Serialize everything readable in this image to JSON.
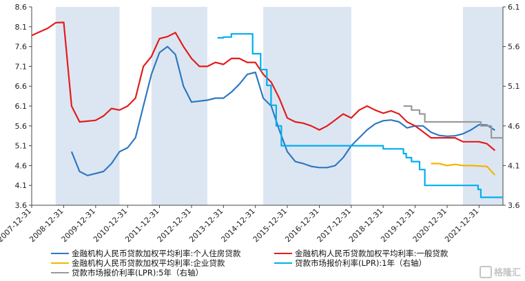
{
  "chart_data": {
    "type": "line",
    "left_axis": {
      "ylim": [
        3.6,
        8.6
      ],
      "ticks": [
        "3.6",
        "4.1",
        "4.6",
        "5.1",
        "5.6",
        "6.1",
        "6.6",
        "7.1",
        "7.6",
        "8.1",
        "8.6"
      ]
    },
    "right_axis": {
      "ylim": [
        3.6,
        6.1
      ],
      "ticks": [
        "3.6",
        "4.1",
        "4.6",
        "5.1",
        "5.6",
        "6.1"
      ]
    },
    "x_range": [
      "2007-12-31",
      "2022-09-30"
    ],
    "x_ticks": [
      "2007-12-31",
      "2008-12-31",
      "2009-12-31",
      "2010-12-31",
      "2011-12-31",
      "2012-12-31",
      "2013-12-31",
      "2014-12-31",
      "2015-12-31",
      "2016-12-31",
      "2017-12-31",
      "2018-12-31",
      "2019-12-31",
      "2020-12-31",
      "2021-12-31"
    ],
    "shaded_periods": [
      [
        "2008-09-30",
        "2010-09-30"
      ],
      [
        "2011-09-30",
        "2013-06-30"
      ],
      [
        "2015-03-31",
        "2017-12-31"
      ],
      [
        "2021-06-30",
        "2022-09-30"
      ]
    ],
    "series": [
      {
        "name": "金融机构人民币贷款加权平均利率:个人住房贷款",
        "axis": "left",
        "color": "#2f77c1",
        "points": [
          [
            "2009-03-31",
            4.95
          ],
          [
            "2009-06-30",
            4.45
          ],
          [
            "2009-09-30",
            4.35
          ],
          [
            "2010-03-31",
            4.45
          ],
          [
            "2010-06-30",
            4.65
          ],
          [
            "2010-09-30",
            4.95
          ],
          [
            "2010-12-31",
            5.05
          ],
          [
            "2011-03-31",
            5.3
          ],
          [
            "2011-06-30",
            6.1
          ],
          [
            "2011-09-30",
            6.9
          ],
          [
            "2011-12-31",
            7.45
          ],
          [
            "2012-03-31",
            7.6
          ],
          [
            "2012-06-30",
            7.4
          ],
          [
            "2012-09-30",
            6.6
          ],
          [
            "2012-12-31",
            6.2
          ],
          [
            "2013-06-30",
            6.25
          ],
          [
            "2013-09-30",
            6.3
          ],
          [
            "2013-12-31",
            6.3
          ],
          [
            "2014-03-31",
            6.45
          ],
          [
            "2014-06-30",
            6.65
          ],
          [
            "2014-09-30",
            6.9
          ],
          [
            "2014-12-31",
            6.95
          ],
          [
            "2015-03-31",
            6.3
          ],
          [
            "2015-06-30",
            6.1
          ],
          [
            "2015-09-30",
            5.5
          ],
          [
            "2015-12-31",
            4.95
          ],
          [
            "2016-03-31",
            4.7
          ],
          [
            "2016-06-30",
            4.65
          ],
          [
            "2016-09-30",
            4.58
          ],
          [
            "2016-12-31",
            4.55
          ],
          [
            "2017-03-31",
            4.55
          ],
          [
            "2017-06-30",
            4.6
          ],
          [
            "2017-09-30",
            4.8
          ],
          [
            "2017-12-31",
            5.1
          ],
          [
            "2018-03-31",
            5.3
          ],
          [
            "2018-06-30",
            5.5
          ],
          [
            "2018-09-30",
            5.65
          ],
          [
            "2018-12-31",
            5.73
          ],
          [
            "2019-03-31",
            5.75
          ],
          [
            "2019-06-30",
            5.7
          ],
          [
            "2019-09-30",
            5.55
          ],
          [
            "2019-12-31",
            5.6
          ],
          [
            "2020-03-31",
            5.6
          ],
          [
            "2020-06-30",
            5.44
          ],
          [
            "2020-09-30",
            5.36
          ],
          [
            "2020-12-31",
            5.34
          ],
          [
            "2021-03-31",
            5.35
          ],
          [
            "2021-06-30",
            5.4
          ],
          [
            "2021-09-30",
            5.5
          ],
          [
            "2021-12-31",
            5.63
          ],
          [
            "2022-03-31",
            5.62
          ],
          [
            "2022-06-30",
            5.49
          ]
        ]
      },
      {
        "name": "金融机构人民币贷款加权平均利率:一般贷款",
        "axis": "left",
        "color": "#e31b1b",
        "points": [
          [
            "2007-12-31",
            7.88
          ],
          [
            "2008-03-31",
            7.97
          ],
          [
            "2008-06-30",
            8.06
          ],
          [
            "2008-09-30",
            8.2
          ],
          [
            "2008-12-31",
            8.21
          ],
          [
            "2009-03-31",
            6.1
          ],
          [
            "2009-06-30",
            5.7
          ],
          [
            "2009-09-30",
            5.72
          ],
          [
            "2009-12-31",
            5.74
          ],
          [
            "2010-03-31",
            5.85
          ],
          [
            "2010-06-30",
            6.04
          ],
          [
            "2010-09-30",
            6.0
          ],
          [
            "2010-12-31",
            6.1
          ],
          [
            "2011-03-31",
            6.3
          ],
          [
            "2011-06-30",
            7.1
          ],
          [
            "2011-09-30",
            7.35
          ],
          [
            "2011-12-31",
            7.8
          ],
          [
            "2012-03-31",
            7.85
          ],
          [
            "2012-06-30",
            7.95
          ],
          [
            "2012-09-30",
            7.6
          ],
          [
            "2012-12-31",
            7.3
          ],
          [
            "2013-03-31",
            7.1
          ],
          [
            "2013-06-30",
            7.1
          ],
          [
            "2013-09-30",
            7.2
          ],
          [
            "2013-12-31",
            7.15
          ],
          [
            "2014-03-31",
            7.3
          ],
          [
            "2014-06-30",
            7.3
          ],
          [
            "2014-09-30",
            7.2
          ],
          [
            "2014-12-31",
            7.2
          ],
          [
            "2015-03-31",
            6.9
          ],
          [
            "2015-06-30",
            6.7
          ],
          [
            "2015-09-30",
            6.3
          ],
          [
            "2015-12-31",
            5.8
          ],
          [
            "2016-03-31",
            5.7
          ],
          [
            "2016-06-30",
            5.67
          ],
          [
            "2016-09-30",
            5.6
          ],
          [
            "2016-12-31",
            5.5
          ],
          [
            "2017-03-31",
            5.6
          ],
          [
            "2017-06-30",
            5.75
          ],
          [
            "2017-09-30",
            5.9
          ],
          [
            "2017-12-31",
            5.8
          ],
          [
            "2018-03-31",
            6.0
          ],
          [
            "2018-06-30",
            6.1
          ],
          [
            "2018-09-30",
            6.0
          ],
          [
            "2018-12-31",
            5.92
          ],
          [
            "2019-03-31",
            5.98
          ],
          [
            "2019-06-30",
            5.9
          ],
          [
            "2019-09-30",
            5.7
          ],
          [
            "2019-12-31",
            5.6
          ],
          [
            "2020-03-31",
            5.45
          ],
          [
            "2020-06-30",
            5.3
          ],
          [
            "2020-09-30",
            5.3
          ],
          [
            "2020-12-31",
            5.3
          ],
          [
            "2021-03-31",
            5.3
          ],
          [
            "2021-06-30",
            5.2
          ],
          [
            "2021-09-30",
            5.2
          ],
          [
            "2021-12-31",
            5.2
          ],
          [
            "2022-03-31",
            5.15
          ],
          [
            "2022-06-30",
            4.98
          ]
        ]
      },
      {
        "name": "金融机构人民币贷款加权平均利率:企业贷款",
        "axis": "left",
        "color": "#f4b400",
        "points": [
          [
            "2020-06-30",
            4.65
          ],
          [
            "2020-09-30",
            4.65
          ],
          [
            "2020-12-31",
            4.6
          ],
          [
            "2021-03-31",
            4.63
          ],
          [
            "2021-06-30",
            4.6
          ],
          [
            "2021-09-30",
            4.6
          ],
          [
            "2021-12-31",
            4.59
          ],
          [
            "2022-03-31",
            4.58
          ],
          [
            "2022-06-30",
            4.36
          ]
        ]
      },
      {
        "name": "贷款市场报价利率(LPR):1年（右轴）",
        "axis": "right",
        "color": "#00aeef",
        "step": true,
        "points": [
          [
            "2013-10-25",
            5.71
          ],
          [
            "2013-12-31",
            5.72
          ],
          [
            "2014-03-31",
            5.76
          ],
          [
            "2014-09-30",
            5.76
          ],
          [
            "2014-11-30",
            5.51
          ],
          [
            "2015-03-01",
            5.31
          ],
          [
            "2015-05-11",
            5.11
          ],
          [
            "2015-06-28",
            4.86
          ],
          [
            "2015-08-26",
            4.6
          ],
          [
            "2015-10-24",
            4.35
          ],
          [
            "2016-06-30",
            4.35
          ],
          [
            "2018-12-31",
            4.31
          ],
          [
            "2019-08-20",
            4.25
          ],
          [
            "2019-09-20",
            4.2
          ],
          [
            "2019-11-20",
            4.15
          ],
          [
            "2020-02-20",
            4.05
          ],
          [
            "2020-04-20",
            3.85
          ],
          [
            "2021-12-20",
            3.8
          ],
          [
            "2022-01-20",
            3.7
          ],
          [
            "2022-09-30",
            3.7
          ]
        ]
      },
      {
        "name": "贷款市场报价利率(LPR):5年（右轴）",
        "axis": "right",
        "color": "#999999",
        "step": true,
        "points": [
          [
            "2019-08-20",
            4.85
          ],
          [
            "2019-11-20",
            4.8
          ],
          [
            "2020-02-20",
            4.75
          ],
          [
            "2020-04-20",
            4.65
          ],
          [
            "2022-01-20",
            4.6
          ],
          [
            "2022-05-20",
            4.45
          ],
          [
            "2022-09-30",
            4.45
          ]
        ]
      }
    ]
  },
  "legend": [
    {
      "label": "金融机构人民币贷款加权平均利率:个人住房贷款",
      "color": "#2f77c1"
    },
    {
      "label": "金融机构人民币贷款加权平均利率:一般贷款",
      "color": "#e31b1b"
    },
    {
      "label": "金融机构人民币贷款加权平均利率:企业贷款",
      "color": "#f4b400"
    },
    {
      "label": "贷款市场报价利率(LPR):1年（右轴）",
      "color": "#00aeef"
    },
    {
      "label": "贷款市场报价利率(LPR):5年（右轴）",
      "color": "#999999"
    }
  ],
  "watermark": "格隆汇"
}
